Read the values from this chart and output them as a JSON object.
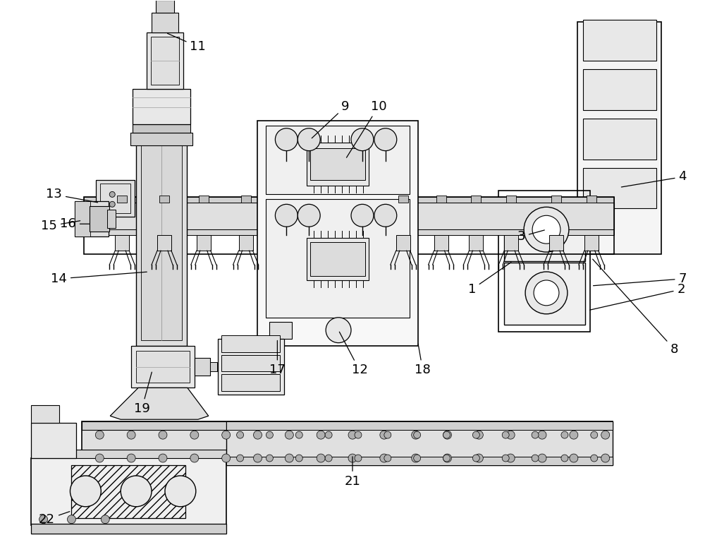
{
  "bg_color": "#ffffff",
  "lc": "#000000",
  "gray1": "#f0f0f0",
  "gray2": "#e0e0e0",
  "gray3": "#d0d0d0",
  "gray4": "#c0c0c0",
  "gray5": "#b0b0b0"
}
